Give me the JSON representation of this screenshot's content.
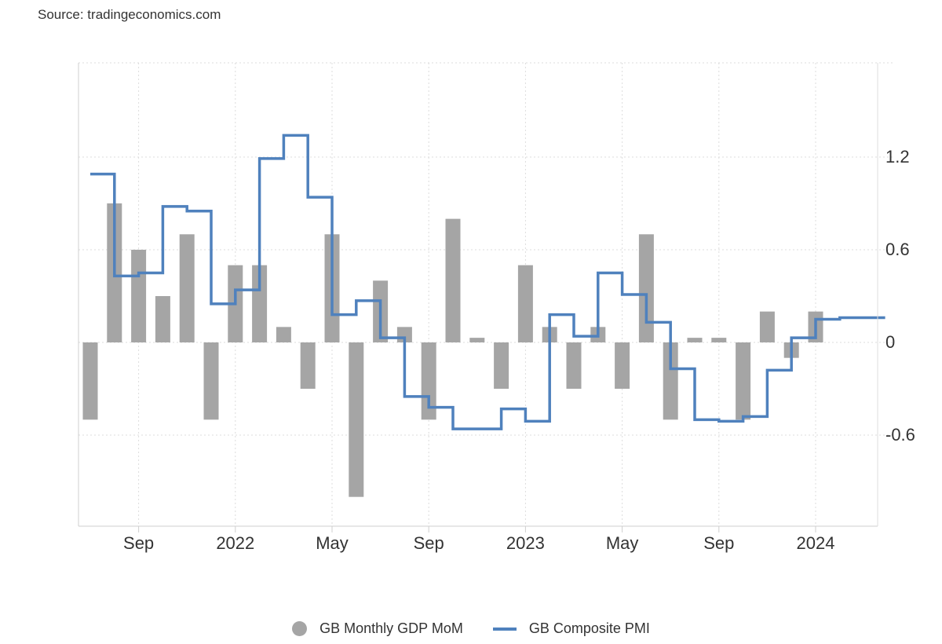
{
  "source": "Source: tradingeconomics.com",
  "colors": {
    "bars": "#a5a5a5",
    "line": "#4f81bd",
    "grid": "#dcdcdc"
  },
  "chart_data": {
    "type": "bar+line",
    "x_start": "2021-07",
    "x_end": "2024-03",
    "ylim": [
      -1.2,
      1.8
    ],
    "y_ticks": [
      1.2,
      0.6,
      0,
      -0.6
    ],
    "y_tick_labels": [
      "1.2",
      "0.6",
      "0",
      "-0.6"
    ],
    "x_ticks": [
      {
        "date": "2021-09",
        "label": "Sep"
      },
      {
        "date": "2022-01",
        "label": "2022"
      },
      {
        "date": "2022-05",
        "label": "May"
      },
      {
        "date": "2022-09",
        "label": "Sep"
      },
      {
        "date": "2023-01",
        "label": "2023"
      },
      {
        "date": "2023-05",
        "label": "May"
      },
      {
        "date": "2023-09",
        "label": "Sep"
      },
      {
        "date": "2024-01",
        "label": "2024"
      }
    ],
    "grid": true,
    "legend_position": "bottom",
    "series": [
      {
        "name": "GB Monthly GDP MoM",
        "type": "bar",
        "dates": [
          "2021-07",
          "2021-08",
          "2021-09",
          "2021-10",
          "2021-11",
          "2021-12",
          "2022-01",
          "2022-02",
          "2022-03",
          "2022-04",
          "2022-05",
          "2022-06",
          "2022-07",
          "2022-08",
          "2022-09",
          "2022-10",
          "2022-11",
          "2022-12",
          "2023-01",
          "2023-02",
          "2023-03",
          "2023-04",
          "2023-05",
          "2023-06",
          "2023-07",
          "2023-08",
          "2023-09",
          "2023-10",
          "2023-11",
          "2023-12",
          "2024-01"
        ],
        "values": [
          -0.5,
          0.9,
          0.6,
          0.3,
          0.7,
          -0.5,
          0.5,
          0.5,
          0.1,
          -0.3,
          0.7,
          -1.0,
          0.4,
          0.1,
          -0.5,
          0.8,
          0.03,
          -0.3,
          0.5,
          0.1,
          -0.3,
          0.1,
          -0.3,
          0.7,
          -0.5,
          0.03,
          0.03,
          -0.5,
          0.2,
          -0.1,
          0.2
        ]
      },
      {
        "name": "GB Composite PMI",
        "type": "step-line",
        "dates": [
          "2021-07",
          "2021-08",
          "2021-09",
          "2021-10",
          "2021-11",
          "2021-12",
          "2022-01",
          "2022-02",
          "2022-03",
          "2022-04",
          "2022-05",
          "2022-06",
          "2022-07",
          "2022-08",
          "2022-09",
          "2022-10",
          "2022-11",
          "2022-12",
          "2023-01",
          "2023-02",
          "2023-03",
          "2023-04",
          "2023-05",
          "2023-06",
          "2023-07",
          "2023-08",
          "2023-09",
          "2023-10",
          "2023-11",
          "2023-12",
          "2024-01",
          "2024-02",
          "2024-03"
        ],
        "values": [
          1.09,
          0.43,
          0.45,
          0.88,
          0.85,
          0.25,
          0.34,
          1.19,
          1.34,
          0.94,
          0.18,
          0.27,
          0.03,
          -0.35,
          -0.42,
          -0.56,
          -0.56,
          -0.43,
          -0.51,
          0.18,
          0.04,
          0.45,
          0.31,
          0.13,
          -0.17,
          -0.5,
          -0.51,
          -0.48,
          -0.18,
          0.03,
          0.15,
          0.16,
          0.16
        ]
      }
    ]
  },
  "legend": [
    {
      "label": "GB Monthly GDP MoM"
    },
    {
      "label": "GB Composite PMI"
    }
  ]
}
